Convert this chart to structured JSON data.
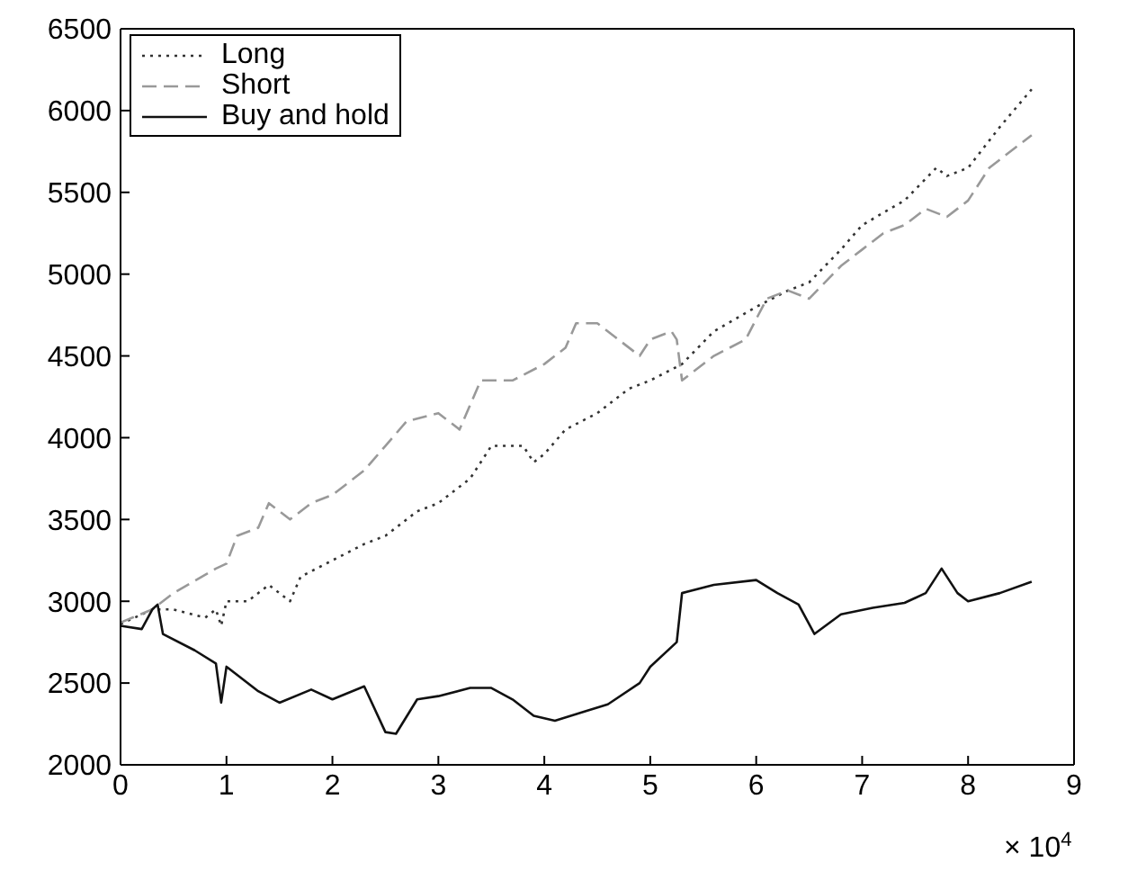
{
  "chart_data": {
    "type": "line",
    "xlim": [
      0,
      9
    ],
    "xticks": [
      0,
      1,
      2,
      3,
      4,
      5,
      6,
      7,
      8,
      9
    ],
    "ylim": [
      2000,
      6500
    ],
    "yticks": [
      2000,
      2500,
      3000,
      3500,
      4000,
      4500,
      5000,
      5500,
      6000,
      6500
    ],
    "annotations": [
      "× 10$^{4}$"
    ],
    "legend": "top left",
    "grid": false,
    "marker": "none",
    "series": [
      {
        "name": "Long",
        "color": "#333333",
        "line_style": "dotted",
        "x": [
          0,
          0.3,
          0.5,
          0.8,
          0.9,
          0.95,
          1.0,
          1.2,
          1.4,
          1.6,
          1.7,
          2.0,
          2.3,
          2.5,
          2.8,
          3.0,
          3.3,
          3.5,
          3.8,
          3.9,
          4.0,
          4.2,
          4.5,
          4.8,
          5.0,
          5.3,
          5.6,
          6.0,
          6.3,
          6.5,
          6.8,
          7.0,
          7.4,
          7.7,
          7.8,
          8.0,
          8.3,
          8.6
        ],
        "values": [
          2860,
          2950,
          2950,
          2900,
          2950,
          2850,
          3000,
          3000,
          3100,
          3000,
          3150,
          3250,
          3350,
          3400,
          3550,
          3600,
          3750,
          3950,
          3950,
          3850,
          3900,
          4050,
          4150,
          4300,
          4350,
          4450,
          4650,
          4800,
          4900,
          4950,
          5150,
          5300,
          5450,
          5650,
          5600,
          5650,
          5900,
          6130
        ]
      },
      {
        "name": "Short",
        "color": "#999999",
        "line_style": "dashed",
        "x": [
          0,
          0.3,
          0.5,
          0.9,
          1.0,
          1.1,
          1.3,
          1.4,
          1.6,
          1.8,
          2.0,
          2.3,
          2.5,
          2.7,
          3.0,
          3.2,
          3.4,
          3.7,
          4.0,
          4.2,
          4.3,
          4.5,
          4.7,
          4.9,
          5.0,
          5.2,
          5.25,
          5.3,
          5.6,
          5.9,
          6.1,
          6.3,
          6.5,
          6.8,
          7.0,
          7.2,
          7.4,
          7.6,
          7.8,
          8.0,
          8.2,
          8.4,
          8.6
        ],
        "values": [
          2870,
          2950,
          3050,
          3200,
          3230,
          3400,
          3450,
          3600,
          3500,
          3600,
          3650,
          3800,
          3950,
          4100,
          4150,
          4050,
          4350,
          4350,
          4450,
          4550,
          4700,
          4700,
          4600,
          4500,
          4600,
          4650,
          4600,
          4350,
          4500,
          4600,
          4850,
          4900,
          4850,
          5050,
          5150,
          5250,
          5300,
          5400,
          5350,
          5450,
          5650,
          5750,
          5850
        ]
      },
      {
        "name": "Buy and hold",
        "color": "#111111",
        "line_style": "solid",
        "x": [
          0,
          0.2,
          0.3,
          0.35,
          0.4,
          0.7,
          0.9,
          0.95,
          1.0,
          1.1,
          1.3,
          1.5,
          1.8,
          2.0,
          2.3,
          2.5,
          2.6,
          2.8,
          3.0,
          3.3,
          3.5,
          3.7,
          3.9,
          4.1,
          4.4,
          4.6,
          4.9,
          5.0,
          5.25,
          5.3,
          5.6,
          6.0,
          6.2,
          6.4,
          6.55,
          6.8,
          7.1,
          7.4,
          7.6,
          7.75,
          7.9,
          8.0,
          8.3,
          8.6
        ],
        "values": [
          2850,
          2830,
          2950,
          2980,
          2800,
          2700,
          2620,
          2380,
          2600,
          2550,
          2450,
          2380,
          2460,
          2400,
          2480,
          2200,
          2190,
          2400,
          2420,
          2470,
          2470,
          2400,
          2300,
          2270,
          2330,
          2370,
          2500,
          2600,
          2750,
          3050,
          3100,
          3130,
          3050,
          2980,
          2800,
          2920,
          2960,
          2990,
          3050,
          3200,
          3050,
          3000,
          3050,
          3120
        ]
      }
    ]
  }
}
